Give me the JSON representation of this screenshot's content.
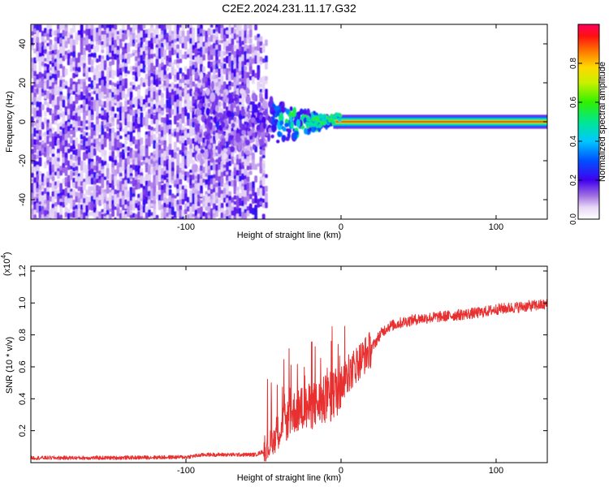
{
  "title": "C2E2.2024.231.11.17.G32",
  "chart_data": [
    {
      "type": "heatmap",
      "xlabel": "Height of straight line (km)",
      "ylabel": "Frequency (Hz)",
      "xlim": [
        -200,
        133
      ],
      "ylim": [
        -50,
        50
      ],
      "xticks": [
        -100,
        0,
        100
      ],
      "yticks": [
        -40,
        -20,
        0,
        20,
        40
      ],
      "xtick_labels": [
        "-100",
        "0",
        "100"
      ],
      "ytick_labels": [
        "-40",
        "-20",
        "0",
        "20",
        "40"
      ],
      "colorbar": {
        "label": "Normalized spectral amplitude",
        "range": [
          0,
          1
        ],
        "ticks": [
          0,
          0.2,
          0.4,
          0.6,
          0.8
        ],
        "tick_labels": [
          "0.0",
          "0.2",
          "0.4",
          "0.6",
          "0.8"
        ]
      },
      "regions": {
        "noise_x_range": [
          -200,
          -50
        ],
        "transition_x_range": [
          -50,
          0
        ],
        "signal_line_x_range": [
          0,
          133
        ],
        "signal_line_frequency": 0
      }
    },
    {
      "type": "line",
      "xlabel": "Height of straight line (km)",
      "ylabel": "SNR (10 * v/v)",
      "y_multiplier": "(x10",
      "y_multiplier_exp": "4",
      "y_multiplier_close": ")",
      "xlim": [
        -200,
        133
      ],
      "ylim": [
        0,
        1.23
      ],
      "xticks": [
        -100,
        0,
        100
      ],
      "yticks": [
        0.2,
        0.4,
        0.6,
        0.8,
        1.0,
        1.2
      ],
      "xtick_labels": [
        "-100",
        "0",
        "100"
      ],
      "ytick_labels": [
        "0.2",
        "0.4",
        "0.6",
        "0.8",
        "1.0",
        "1.2"
      ],
      "series": [
        {
          "color": "#e83030",
          "x": [
            -200,
            -150,
            -100,
            -88,
            -70,
            -55,
            -48,
            -40,
            -30,
            -20,
            -12,
            -5,
            0,
            5,
            10,
            15,
            20,
            25,
            30,
            40,
            50,
            60,
            70,
            80,
            90,
            100,
            110,
            120,
            133
          ],
          "y": [
            0.03,
            0.03,
            0.035,
            0.05,
            0.05,
            0.05,
            0.08,
            0.2,
            0.32,
            0.35,
            0.38,
            0.42,
            0.5,
            0.55,
            0.62,
            0.67,
            0.72,
            0.8,
            0.85,
            0.88,
            0.9,
            0.91,
            0.92,
            0.93,
            0.94,
            0.96,
            0.97,
            0.98,
            0.99
          ]
        }
      ]
    }
  ]
}
